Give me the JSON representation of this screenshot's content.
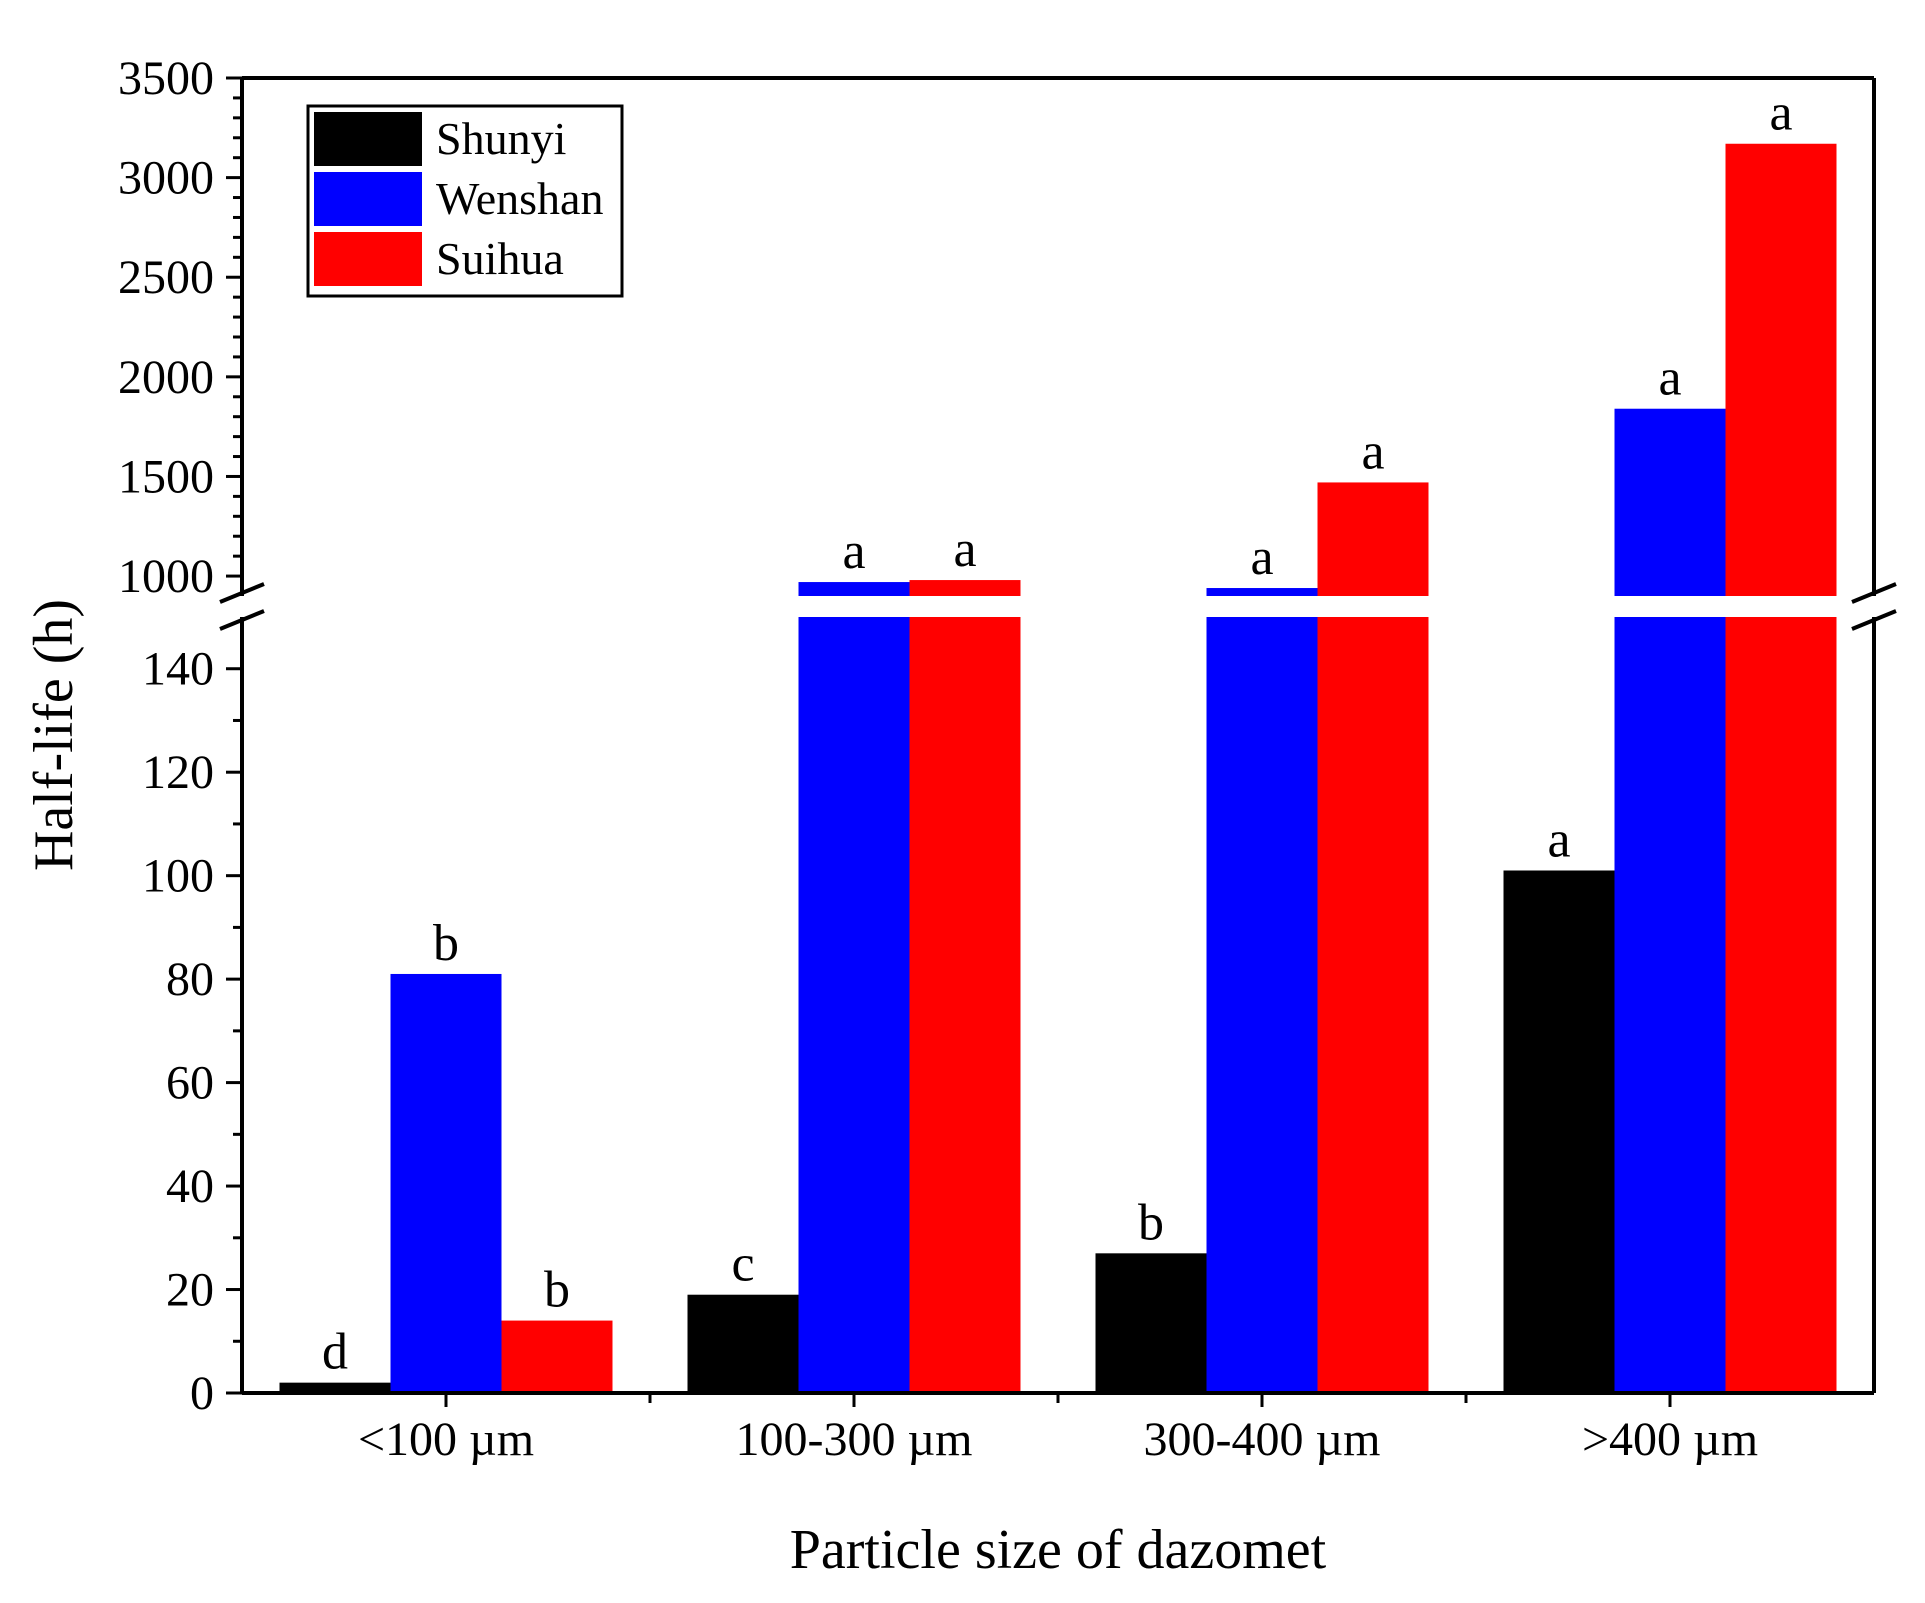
{
  "chart_data": {
    "type": "bar",
    "xlabel": "Particle size of dazomet",
    "ylabel": "Half-life (h)",
    "categories": [
      "<100 µm",
      "100-300 µm",
      "300-400 µm",
      ">400 µm"
    ],
    "broken_axis": {
      "lower_range": [
        0,
        150
      ],
      "upper_range": [
        900,
        3500
      ],
      "lower_ticks": [
        0,
        20,
        40,
        60,
        80,
        100,
        120,
        140
      ],
      "upper_ticks": [
        1000,
        1500,
        2000,
        2500,
        3000,
        3500
      ]
    },
    "series": [
      {
        "name": "Shunyi",
        "color": "#000000",
        "values": [
          2,
          19,
          27,
          101
        ],
        "letters": [
          "d",
          "c",
          "b",
          "a"
        ]
      },
      {
        "name": "Wenshan",
        "color": "#0000ff",
        "values": [
          81,
          970,
          940,
          1840
        ],
        "letters": [
          "b",
          "a",
          "a",
          "a"
        ]
      },
      {
        "name": "Suihua",
        "color": "#ff0000",
        "values": [
          14,
          980,
          1470,
          3170
        ],
        "letters": [
          "b",
          "a",
          "a",
          "a"
        ]
      }
    ],
    "legend": {
      "position": "top-left"
    }
  }
}
